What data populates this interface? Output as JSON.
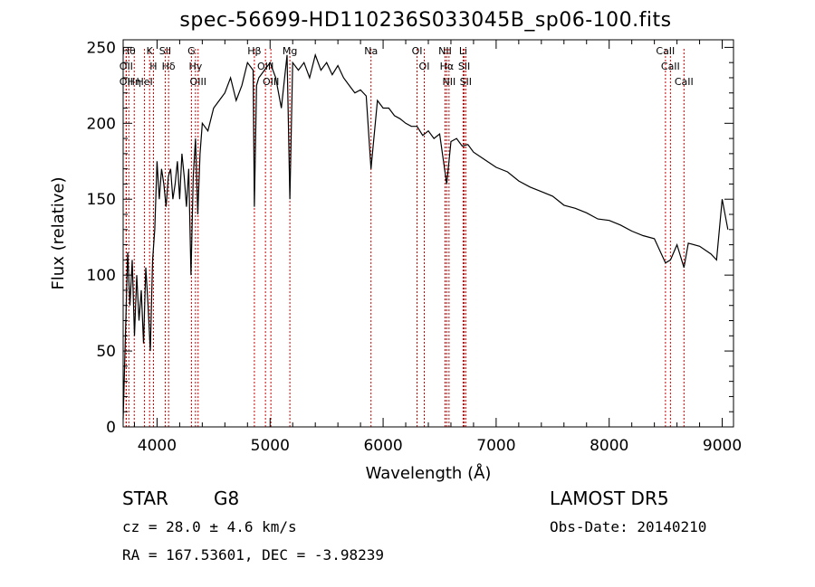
{
  "title": "spec-56699-HD110236S033045B_sp06-100.fits",
  "info": {
    "object_type": "STAR",
    "object_class": "G8",
    "survey": "LAMOST DR5",
    "cz": "cz = 28.0 ± 4.6 km/s",
    "obs_date": "Obs-Date: 20140210",
    "ra_dec": "RA = 167.53601, DEC =  -3.98239"
  },
  "colors": {
    "spectrum": "#000000",
    "line_marker": "#cc0000",
    "axes": "#000000"
  },
  "chart_data": {
    "type": "line",
    "title": "spec-56699-HD110236S033045B_sp06-100.fits",
    "xlabel": "Wavelength (Å)",
    "ylabel": "Flux (relative)",
    "xlim": [
      3700,
      9100
    ],
    "ylim": [
      0,
      255
    ],
    "xticks": [
      4000,
      5000,
      6000,
      7000,
      8000,
      9000
    ],
    "yticks": [
      0,
      50,
      100,
      150,
      200,
      250
    ],
    "grid": false,
    "series": [
      {
        "x": [
          3700,
          3720,
          3740,
          3760,
          3780,
          3800,
          3820,
          3840,
          3860,
          3880,
          3900,
          3920,
          3940,
          3960,
          3980,
          4000,
          4020,
          4040,
          4060,
          4080,
          4100,
          4120,
          4140,
          4160,
          4180,
          4200,
          4220,
          4240,
          4260,
          4280,
          4300,
          4320,
          4340,
          4360,
          4380,
          4400,
          4450,
          4500,
          4550,
          4600,
          4650,
          4700,
          4750,
          4800,
          4850,
          4861,
          4880,
          4900,
          4950,
          5000,
          5050,
          5100,
          5150,
          5175,
          5200,
          5250,
          5300,
          5350,
          5400,
          5450,
          5500,
          5550,
          5600,
          5650,
          5700,
          5750,
          5800,
          5850,
          5893,
          5950,
          6000,
          6050,
          6100,
          6150,
          6200,
          6250,
          6300,
          6350,
          6400,
          6450,
          6500,
          6563,
          6600,
          6650,
          6700,
          6750,
          6800,
          6900,
          7000,
          7100,
          7200,
          7300,
          7400,
          7500,
          7600,
          7700,
          7800,
          7900,
          8000,
          8100,
          8200,
          8300,
          8400,
          8498,
          8542,
          8600,
          8662,
          8700,
          8800,
          8900,
          8950,
          9000,
          9050
        ],
        "y": [
          5,
          60,
          115,
          80,
          110,
          60,
          100,
          70,
          90,
          55,
          105,
          80,
          50,
          110,
          130,
          175,
          150,
          170,
          160,
          145,
          165,
          170,
          150,
          160,
          175,
          150,
          180,
          165,
          145,
          170,
          100,
          165,
          190,
          140,
          180,
          200,
          195,
          210,
          215,
          220,
          230,
          215,
          225,
          240,
          235,
          145,
          225,
          230,
          235,
          240,
          230,
          210,
          245,
          150,
          240,
          235,
          240,
          230,
          245,
          235,
          240,
          232,
          238,
          230,
          225,
          220,
          222,
          218,
          170,
          215,
          210,
          210,
          205,
          203,
          200,
          198,
          198,
          192,
          195,
          190,
          193,
          160,
          188,
          190,
          185,
          186,
          181,
          176,
          171,
          168,
          162,
          158,
          155,
          152,
          146,
          144,
          141,
          137,
          136,
          133,
          129,
          126,
          124,
          108,
          110,
          120,
          105,
          121,
          119,
          114,
          110,
          150,
          130
        ]
      }
    ],
    "lines": [
      {
        "wavelength": 3750,
        "label": "Hθ"
      },
      {
        "wavelength": 3727,
        "label": "OII"
      },
      {
        "wavelength": 3727,
        "label": "OII"
      },
      {
        "wavelength": 3798,
        "label": "Hη"
      },
      {
        "wavelength": 3889,
        "label": "HeI"
      },
      {
        "wavelength": 3934,
        "label": "K"
      },
      {
        "wavelength": 3968,
        "label": "H"
      },
      {
        "wavelength": 4072,
        "label": "SII"
      },
      {
        "wavelength": 4102,
        "label": "Hδ"
      },
      {
        "wavelength": 4304,
        "label": "G"
      },
      {
        "wavelength": 4340,
        "label": "Hγ"
      },
      {
        "wavelength": 4363,
        "label": "OIII"
      },
      {
        "wavelength": 4861,
        "label": "Hβ"
      },
      {
        "wavelength": 4959,
        "label": "OIII"
      },
      {
        "wavelength": 5007,
        "label": "OIII"
      },
      {
        "wavelength": 5175,
        "label": "Mg"
      },
      {
        "wavelength": 5893,
        "label": "Na"
      },
      {
        "wavelength": 6300,
        "label": "OI"
      },
      {
        "wavelength": 6364,
        "label": "OI"
      },
      {
        "wavelength": 6548,
        "label": "NII"
      },
      {
        "wavelength": 6563,
        "label": "Hα"
      },
      {
        "wavelength": 6583,
        "label": "NII"
      },
      {
        "wavelength": 6708,
        "label": "Li"
      },
      {
        "wavelength": 6717,
        "label": "SII"
      },
      {
        "wavelength": 6731,
        "label": "SII"
      },
      {
        "wavelength": 8498,
        "label": "CaII"
      },
      {
        "wavelength": 8542,
        "label": "CaII"
      },
      {
        "wavelength": 8662,
        "label": "CaII"
      }
    ]
  }
}
